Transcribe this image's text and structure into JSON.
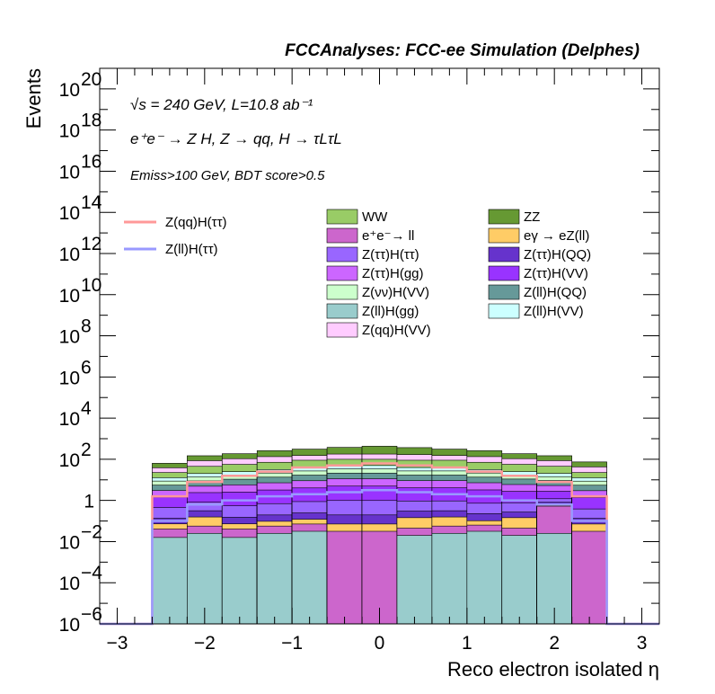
{
  "chart_data": {
    "type": "bar",
    "title": "FCCAnalyses: FCC-ee Simulation (Delphes)",
    "xlabel": "Reco electron isolated η",
    "ylabel": "Events",
    "xlim": [
      -3.2,
      3.2
    ],
    "ylim_log10": [
      -6,
      21
    ],
    "log_y": true,
    "x_ticks": [
      "−3",
      "−2",
      "−1",
      "0",
      "1",
      "2",
      "3"
    ],
    "y_ticks": [
      {
        "base": "10",
        "exp": "20"
      },
      {
        "base": "10",
        "exp": "18"
      },
      {
        "base": "10",
        "exp": "16"
      },
      {
        "base": "10",
        "exp": "14"
      },
      {
        "base": "10",
        "exp": "12"
      },
      {
        "base": "10",
        "exp": "10"
      },
      {
        "base": "10",
        "exp": "8"
      },
      {
        "base": "10",
        "exp": "6"
      },
      {
        "base": "10",
        "exp": "4"
      },
      {
        "base": "10",
        "exp": "2"
      },
      {
        "base": "1",
        "exp": ""
      },
      {
        "base": "10",
        "exp": "−2"
      },
      {
        "base": "10",
        "exp": "−4"
      },
      {
        "base": "10",
        "exp": "−6"
      }
    ],
    "annotations": {
      "line1": "√s = 240 GeV, L=10.8 ab⁻¹",
      "line2": "e⁺e⁻ → Z H, Z → qq, H → τLτL",
      "line3": "Emiss>100 GeV, BDT score>0.5"
    },
    "bin_edges": [
      -2.6,
      -2.2,
      -1.8,
      -1.4,
      -1.0,
      -0.6,
      -0.2,
      0.2,
      0.6,
      1.0,
      1.4,
      1.8,
      2.2,
      2.6
    ],
    "stack": [
      {
        "name": "Z(ll)H(gg)",
        "color": "#99cccc",
        "log10": [
          -1.8,
          -1.6,
          -1.8,
          -1.6,
          -1.5,
          -6,
          -6,
          -1.7,
          -1.6,
          -1.5,
          -1.7,
          -1.6,
          -6
        ]
      },
      {
        "name": "e⁺e⁻→ ll",
        "color": "#cc66cc",
        "log10": [
          -1.6,
          -1.5,
          -1.6,
          -1.5,
          -1.4,
          -1.5,
          -1.5,
          -1.6,
          -1.5,
          -1.5,
          -1.6,
          -0.3,
          -1.5
        ]
      },
      {
        "name": "eγ → eZ(ll)",
        "color": "#ffcc66",
        "log10": [
          -1.5,
          -1.0,
          -1.5,
          -1.4,
          -1.3,
          -1.4,
          -1.4,
          -1.0,
          -1.0,
          -1.4,
          -1.0,
          -1.5,
          -1.4
        ]
      },
      {
        "name": "Z(ττ)H(QQ)",
        "color": "#6633cc",
        "log10": [
          -1.2,
          -0.8,
          -1.1,
          -1.0,
          -0.9,
          -0.9,
          -0.9,
          -0.8,
          -0.8,
          -0.9,
          -0.9,
          -0.6,
          -1.2
        ]
      },
      {
        "name": "Z(ττ)H(ττ)",
        "color": "#9966ff",
        "log10": [
          -0.5,
          -0.3,
          -0.4,
          -0.3,
          -0.2,
          -0.1,
          -0.1,
          -0.2,
          -0.2,
          -0.3,
          -0.3,
          -0.4,
          -0.6
        ]
      },
      {
        "name": "Z(ττ)H(VV)",
        "color": "#9933ff",
        "log10": [
          0.0,
          0.2,
          0.3,
          0.4,
          0.5,
          0.6,
          0.6,
          0.5,
          0.5,
          0.4,
          0.3,
          0.2,
          0.0
        ]
      },
      {
        "name": "Z(ττ)H(gg)",
        "color": "#cc66ff",
        "log10": [
          0.2,
          0.4,
          0.5,
          0.6,
          0.7,
          0.8,
          0.8,
          0.7,
          0.7,
          0.6,
          0.5,
          0.4,
          0.2
        ]
      },
      {
        "name": "Z(ll)H(QQ)",
        "color": "#669999",
        "log10": [
          0.4,
          0.6,
          0.7,
          0.8,
          0.9,
          1.0,
          1.0,
          0.9,
          0.9,
          0.8,
          0.7,
          0.6,
          0.4
        ]
      },
      {
        "name": "Z(νν)H(VV)",
        "color": "#ccffcc",
        "log10": [
          0.5,
          0.7,
          0.8,
          0.9,
          1.0,
          1.1,
          1.1,
          1.0,
          1.0,
          0.9,
          0.8,
          0.7,
          0.5
        ]
      },
      {
        "name": "Z(ll)H(VV)",
        "color": "#ccffff",
        "log10": [
          0.6,
          0.8,
          0.9,
          1.0,
          1.1,
          1.2,
          1.2,
          1.1,
          1.1,
          1.0,
          0.9,
          0.8,
          0.6
        ]
      },
      {
        "name": "WW",
        "color": "#99cc66",
        "log10": [
          1.0,
          1.4,
          1.5,
          1.6,
          1.7,
          1.7,
          1.7,
          1.7,
          1.7,
          1.6,
          1.5,
          1.4,
          1.0
        ]
      },
      {
        "name": "Z(qq)H(VV)",
        "color": "#ffccff",
        "log10": [
          1.2,
          1.6,
          1.7,
          1.8,
          1.8,
          1.9,
          1.9,
          1.9,
          1.8,
          1.8,
          1.7,
          1.6,
          1.3
        ]
      },
      {
        "name": "ZZ",
        "color": "#669933",
        "log10": [
          1.4,
          1.8,
          1.9,
          2.1,
          2.2,
          2.3,
          2.4,
          2.3,
          2.2,
          2.1,
          1.9,
          1.8,
          1.5
        ]
      }
    ],
    "lines": [
      {
        "name": "Z(qq)H(ττ)",
        "color": "#ff9999",
        "log10": [
          0.2,
          0.9,
          1.2,
          1.4,
          1.6,
          1.7,
          1.8,
          1.7,
          1.6,
          1.4,
          1.2,
          0.9,
          0.2
        ]
      },
      {
        "name": "Z(ll)H(ττ)",
        "color": "#9999ff",
        "log10": [
          -1.0,
          -0.2,
          0.0,
          0.2,
          0.3,
          0.4,
          0.5,
          0.4,
          0.3,
          0.2,
          0.0,
          -0.2,
          -1.0
        ]
      }
    ],
    "legend_left": [
      "Z(qq)H(ττ)",
      "Z(ll)H(ττ)"
    ],
    "legend_col1": [
      "WW",
      "e⁺e⁻→ ll",
      "Z(ττ)H(ττ)",
      "Z(ττ)H(gg)",
      "Z(νν)H(VV)",
      "Z(ll)H(gg)",
      "Z(qq)H(VV)"
    ],
    "legend_col2": [
      "ZZ",
      "eγ → eZ(ll)",
      "Z(ττ)H(QQ)",
      "Z(ττ)H(VV)",
      "Z(ll)H(QQ)",
      "Z(ll)H(VV)"
    ]
  }
}
